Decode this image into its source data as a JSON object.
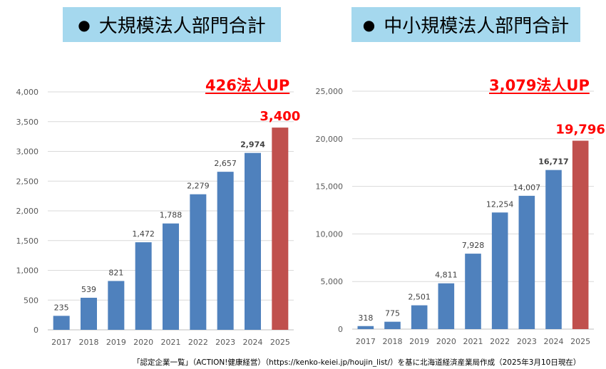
{
  "titles": {
    "left": "大規模法人部門合計",
    "right": "中小規模法人部門合計"
  },
  "highlights": {
    "left": "426法人UP",
    "right": "3,079法人UP"
  },
  "source": "「認定企業一覧」（ACTION!健康経営）（https://kenko-keiei.jp/houjin_list/）を基に北海道経済産業局作成（2025年3月10日現在）",
  "colors": {
    "bar": "#4f81bd",
    "highlight_bar": "#c0504d",
    "title_bg": "#a5d8ee",
    "emphasis_text": "#ff0000"
  },
  "chart_data": [
    {
      "type": "bar",
      "title": "大規模法人部門合計",
      "categories": [
        "2017",
        "2018",
        "2019",
        "2020",
        "2021",
        "2022",
        "2023",
        "2024",
        "2025"
      ],
      "values": [
        235,
        539,
        821,
        1472,
        1788,
        2279,
        2657,
        2974,
        3400
      ],
      "value_labels": [
        "235",
        "539",
        "821",
        "1,472",
        "1,788",
        "2,279",
        "2,657",
        "2,974",
        "3,400"
      ],
      "highlight_index": 8,
      "ylim": [
        0,
        4000
      ],
      "yticks": [
        0,
        500,
        1000,
        1500,
        2000,
        2500,
        3000,
        3500,
        4000
      ],
      "ytick_labels": [
        "0",
        "500",
        "1,000",
        "1,500",
        "2,000",
        "2,500",
        "3,000",
        "3,500",
        "4,000"
      ],
      "grid": true,
      "xlabel": "",
      "ylabel": ""
    },
    {
      "type": "bar",
      "title": "中小規模法人部門合計",
      "categories": [
        "2017",
        "2018",
        "2019",
        "2020",
        "2021",
        "2022",
        "2023",
        "2024",
        "2025"
      ],
      "values": [
        318,
        775,
        2501,
        4811,
        7928,
        12254,
        14007,
        16717,
        19796
      ],
      "value_labels": [
        "318",
        "775",
        "2,501",
        "4,811",
        "7,928",
        "12,254",
        "14,007",
        "16,717",
        "19,796"
      ],
      "highlight_index": 8,
      "ylim": [
        0,
        25000
      ],
      "yticks": [
        0,
        5000,
        10000,
        15000,
        20000,
        25000
      ],
      "ytick_labels": [
        "0",
        "5,000",
        "10,000",
        "15,000",
        "20,000",
        "25,000"
      ],
      "grid": true,
      "xlabel": "",
      "ylabel": ""
    }
  ]
}
